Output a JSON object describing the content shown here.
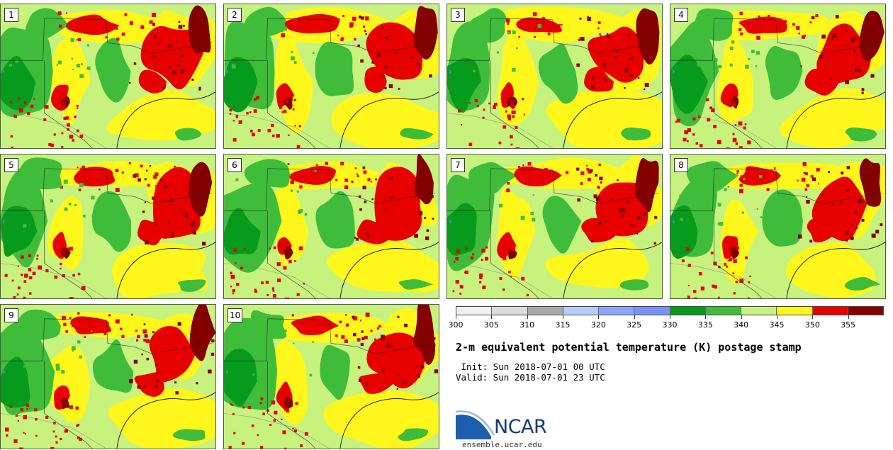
{
  "figure": {
    "title": "2-m equivalent potential temperature (K) postage stamp",
    "init": " Init: Sun 2018-07-01 00 UTC",
    "valid": "Valid: Sun 2018-07-01 23 UTC"
  },
  "members": [
    {
      "label": "1",
      "seed": 11
    },
    {
      "label": "2",
      "seed": 23
    },
    {
      "label": "3",
      "seed": 37
    },
    {
      "label": "4",
      "seed": 41
    },
    {
      "label": "5",
      "seed": 53
    },
    {
      "label": "6",
      "seed": 67
    },
    {
      "label": "7",
      "seed": 71
    },
    {
      "label": "8",
      "seed": 83
    },
    {
      "label": "9",
      "seed": 97
    },
    {
      "label": "10",
      "seed": 103
    }
  ],
  "colorbar": {
    "ticks": [
      "300",
      "305",
      "310",
      "315",
      "320",
      "325",
      "330",
      "335",
      "340",
      "345",
      "350",
      "355"
    ],
    "colors": [
      "#f0f0f0",
      "#dcdcdc",
      "#a8a8a8",
      "#b6cdfb",
      "#8ca7f7",
      "#7a92f5",
      "#069b1c",
      "#3fbd3a",
      "#c7f27e",
      "#fff71c",
      "#e60000",
      "#840000"
    ]
  },
  "colors": {
    "dark_green": "#069b1c",
    "green": "#3fbd3a",
    "light_green": "#c7f27e",
    "yellow": "#fff71c",
    "red": "#e60000",
    "dark_red": "#840000",
    "water": "#5a86e6",
    "outline": "#222222"
  },
  "logo": {
    "text": "NCAR",
    "site": "ensemble.ucar.edu"
  }
}
